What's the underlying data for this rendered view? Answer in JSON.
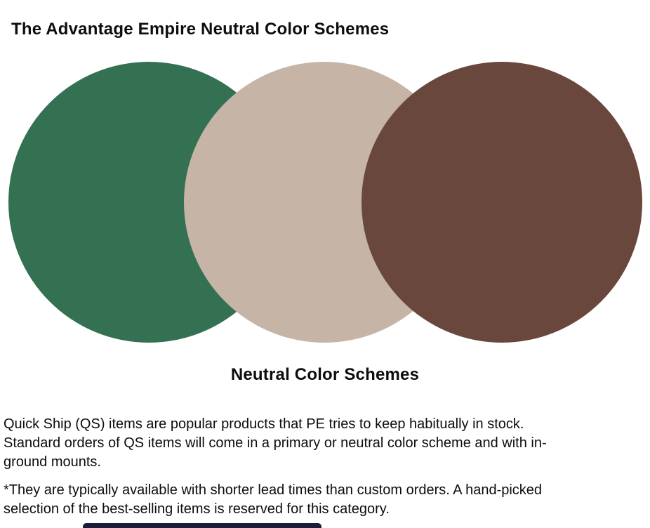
{
  "header": {
    "title_prefix": "The Advantage Empire ",
    "title_suffix": "Neutral Color Schemes"
  },
  "palette": {
    "title": "Neutral Color Schemes",
    "colors": [
      {
        "name": "green",
        "hex": "#347052"
      },
      {
        "name": "tan",
        "hex": "#C6B4A6"
      },
      {
        "name": "brown",
        "hex": "#6A473D"
      }
    ]
  },
  "caption": "Neutral Color Schemes",
  "body": {
    "paragraph1": {
      "lines": [
        "Quick Ship (QS) items are popular products that PE tries to keep habitually in stock.",
        "Standard orders of QS items will come in a primary or neutral color scheme and with in-",
        "ground mounts."
      ]
    },
    "paragraph2": {
      "lines": [
        "*They are typically available with shorter lead times than custom orders. A hand-picked",
        "selection of the best-selling items is reserved for this category."
      ]
    }
  },
  "bottom_bar": {
    "color": "#1B1C3A"
  }
}
